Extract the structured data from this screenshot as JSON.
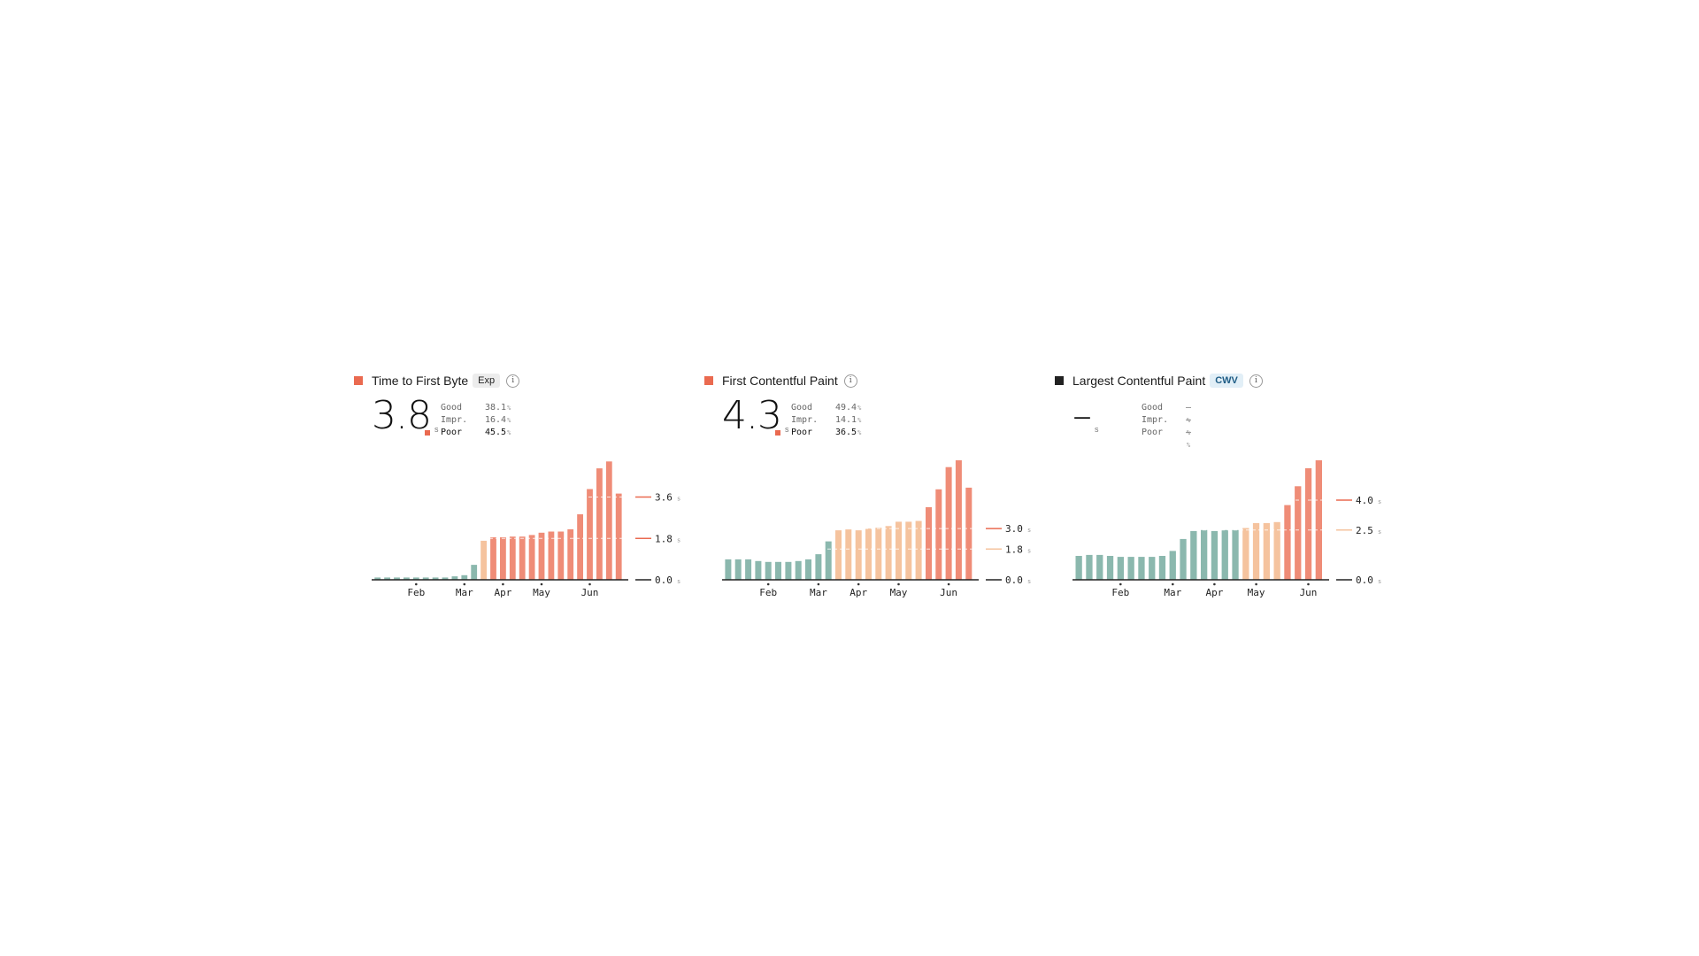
{
  "colors": {
    "good": "#8bb8ae",
    "improve": "#f5c39e",
    "poor": "#ef8c77",
    "poor_mark": "#ea6a50",
    "none": "#222222",
    "axis": "#222222"
  },
  "chart_data": [
    {
      "type": "bar",
      "title": "Time to First Byte",
      "badge": "Exp",
      "value": "3.8",
      "unit": "s",
      "status": "poor",
      "stats": [
        {
          "label": "Good",
          "value": "38.1",
          "unit": "%"
        },
        {
          "label": "Impr.",
          "value": "16.4",
          "unit": "%"
        },
        {
          "label": "Poor",
          "value": "45.5",
          "unit": "%"
        }
      ],
      "active_stat": 2,
      "ylim": [
        0,
        5.2
      ],
      "thresholds": [
        {
          "value": 1.8,
          "label": "1.8",
          "unit": "s",
          "color": "poor"
        },
        {
          "value": 3.6,
          "label": "3.6",
          "unit": "s",
          "color": "poor"
        }
      ],
      "baseline": {
        "label": "0.0",
        "unit": "s"
      },
      "month_ticks": [
        {
          "label": "Feb",
          "index": 4
        },
        {
          "label": "Mar",
          "index": 9
        },
        {
          "label": "Apr",
          "index": 13
        },
        {
          "label": "May",
          "index": 17
        },
        {
          "label": "Jun",
          "index": 22
        }
      ],
      "values": [
        0.1,
        0.1,
        0.1,
        0.1,
        0.1,
        0.1,
        0.1,
        0.1,
        0.15,
        0.2,
        0.65,
        1.7,
        1.85,
        1.85,
        1.88,
        1.88,
        1.95,
        2.05,
        2.1,
        2.1,
        2.2,
        2.85,
        3.95,
        4.85,
        5.15,
        3.75
      ],
      "categories_status": [
        "good",
        "good",
        "good",
        "good",
        "good",
        "good",
        "good",
        "good",
        "good",
        "good",
        "good",
        "improve",
        "poor",
        "poor",
        "poor",
        "poor",
        "poor",
        "poor",
        "poor",
        "poor",
        "poor",
        "poor",
        "poor",
        "poor",
        "poor",
        "poor"
      ]
    },
    {
      "type": "bar",
      "title": "First Contentful Paint",
      "badge": "",
      "value": "4.3",
      "unit": "s",
      "status": "poor",
      "stats": [
        {
          "label": "Good",
          "value": "49.4",
          "unit": "%"
        },
        {
          "label": "Impr.",
          "value": "14.1",
          "unit": "%"
        },
        {
          "label": "Poor",
          "value": "36.5",
          "unit": "%"
        }
      ],
      "active_stat": 2,
      "ylim": [
        0,
        7.0
      ],
      "thresholds": [
        {
          "value": 1.8,
          "label": "1.8",
          "unit": "s",
          "color": "improve"
        },
        {
          "value": 3.0,
          "label": "3.0",
          "unit": "s",
          "color": "poor"
        }
      ],
      "baseline": {
        "label": "0.0",
        "unit": "s"
      },
      "month_ticks": [
        {
          "label": "Feb",
          "index": 4
        },
        {
          "label": "Mar",
          "index": 9
        },
        {
          "label": "Apr",
          "index": 13
        },
        {
          "label": "May",
          "index": 17
        },
        {
          "label": "Jun",
          "index": 22
        }
      ],
      "values": [
        1.2,
        1.2,
        1.2,
        1.1,
        1.05,
        1.05,
        1.05,
        1.1,
        1.2,
        1.5,
        2.25,
        2.9,
        2.95,
        2.9,
        3.0,
        3.05,
        3.15,
        3.4,
        3.4,
        3.45,
        4.25,
        5.3,
        6.6,
        7.0,
        5.4
      ],
      "categories_status": [
        "good",
        "good",
        "good",
        "good",
        "good",
        "good",
        "good",
        "good",
        "good",
        "good",
        "good",
        "improve",
        "improve",
        "improve",
        "improve",
        "improve",
        "improve",
        "improve",
        "improve",
        "improve",
        "poor",
        "poor",
        "poor",
        "poor",
        "poor"
      ]
    },
    {
      "type": "bar",
      "title": "Largest Contentful Paint",
      "badge": "CWV",
      "value": "–",
      "unit": "s",
      "status": "none",
      "stats": [
        {
          "label": "Good",
          "value": "–",
          "unit": "%"
        },
        {
          "label": "Impr.",
          "value": "–",
          "unit": "%"
        },
        {
          "label": "Poor",
          "value": "–",
          "unit": "%"
        }
      ],
      "active_stat": -1,
      "ylim": [
        0,
        6.0
      ],
      "thresholds": [
        {
          "value": 2.5,
          "label": "2.5",
          "unit": "s",
          "color": "improve"
        },
        {
          "value": 4.0,
          "label": "4.0",
          "unit": "s",
          "color": "poor"
        }
      ],
      "baseline": {
        "label": "0.0",
        "unit": "s"
      },
      "month_ticks": [
        {
          "label": "Feb",
          "index": 4
        },
        {
          "label": "Mar",
          "index": 9
        },
        {
          "label": "Apr",
          "index": 13
        },
        {
          "label": "May",
          "index": 17
        },
        {
          "label": "Jun",
          "index": 22
        }
      ],
      "values": [
        1.2,
        1.25,
        1.25,
        1.2,
        1.15,
        1.15,
        1.15,
        1.15,
        1.2,
        1.45,
        2.05,
        2.45,
        2.5,
        2.45,
        2.5,
        2.5,
        2.6,
        2.85,
        2.85,
        2.9,
        3.75,
        4.7,
        5.6,
        6.0
      ],
      "categories_status": [
        "good",
        "good",
        "good",
        "good",
        "good",
        "good",
        "good",
        "good",
        "good",
        "good",
        "good",
        "good",
        "good",
        "good",
        "good",
        "good",
        "improve",
        "improve",
        "improve",
        "improve",
        "poor",
        "poor",
        "poor",
        "poor"
      ]
    }
  ]
}
